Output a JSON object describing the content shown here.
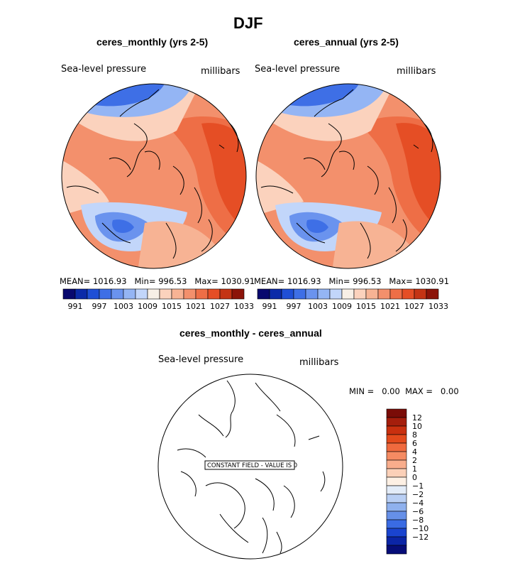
{
  "figure_title": "DJF",
  "chart_data": [
    {
      "type": "contour-map",
      "projection": "north polar stereographic",
      "title": "ceres_monthly (yrs 2-5)",
      "variable": "Sea-level pressure",
      "units": "millibars",
      "stats": {
        "mean_label": "MEAN=",
        "mean": "1016.93",
        "min_label": "Min=",
        "min": "996.53",
        "max_label": "Max=",
        "max": "1030.91"
      },
      "colorbar": {
        "orientation": "horizontal",
        "colors": [
          "#08086e",
          "#0b2aa8",
          "#1f4fd6",
          "#3e6fe6",
          "#6a93ee",
          "#94b5f4",
          "#c2d6fa",
          "#f7efe6",
          "#fbd2bd",
          "#f7b394",
          "#f3906c",
          "#ee6e46",
          "#e54e25",
          "#c43414",
          "#8c1409"
        ],
        "tick_labels": [
          "991",
          "997",
          "1003",
          "1009",
          "1015",
          "1021",
          "1027",
          "1033"
        ]
      }
    },
    {
      "type": "contour-map",
      "projection": "north polar stereographic",
      "title": "ceres_annual (yrs 2-5)",
      "variable": "Sea-level pressure",
      "units": "millibars",
      "stats": {
        "mean_label": "MEAN=",
        "mean": "1016.93",
        "min_label": "Min=",
        "min": "996.53",
        "max_label": "Max=",
        "max": "1030.91"
      },
      "colorbar": {
        "orientation": "horizontal",
        "colors": [
          "#08086e",
          "#0b2aa8",
          "#1f4fd6",
          "#3e6fe6",
          "#6a93ee",
          "#94b5f4",
          "#c2d6fa",
          "#f7efe6",
          "#fbd2bd",
          "#f7b394",
          "#f3906c",
          "#ee6e46",
          "#e54e25",
          "#c43414",
          "#8c1409"
        ],
        "tick_labels": [
          "991",
          "997",
          "1003",
          "1009",
          "1015",
          "1021",
          "1027",
          "1033"
        ]
      }
    },
    {
      "type": "contour-map",
      "projection": "north polar stereographic",
      "title": "ceres_monthly - ceres_annual",
      "variable": "Sea-level pressure",
      "units": "millibars",
      "stats": {
        "min_label": "MIN =",
        "min": "0.00",
        "max_label": "MAX =",
        "max": "0.00"
      },
      "annotation": "CONSTANT FIELD - VALUE IS 0",
      "colorbar": {
        "orientation": "vertical",
        "colors": [
          "#7a0c07",
          "#a51e0c",
          "#c9300f",
          "#e34a1c",
          "#f06a3e",
          "#f58b62",
          "#f8ad8c",
          "#fbd0b8",
          "#fdf0e4",
          "#e3ecf8",
          "#b9cff4",
          "#8fb1ee",
          "#6690e8",
          "#3a6be3",
          "#1a44cf",
          "#0b25a6",
          "#060d78"
        ],
        "tick_labels": [
          "12",
          "10",
          "8",
          "6",
          "4",
          "2",
          "1",
          "0",
          "−1",
          "−2",
          "−4",
          "−6",
          "−8",
          "−10",
          "−12"
        ]
      }
    }
  ]
}
